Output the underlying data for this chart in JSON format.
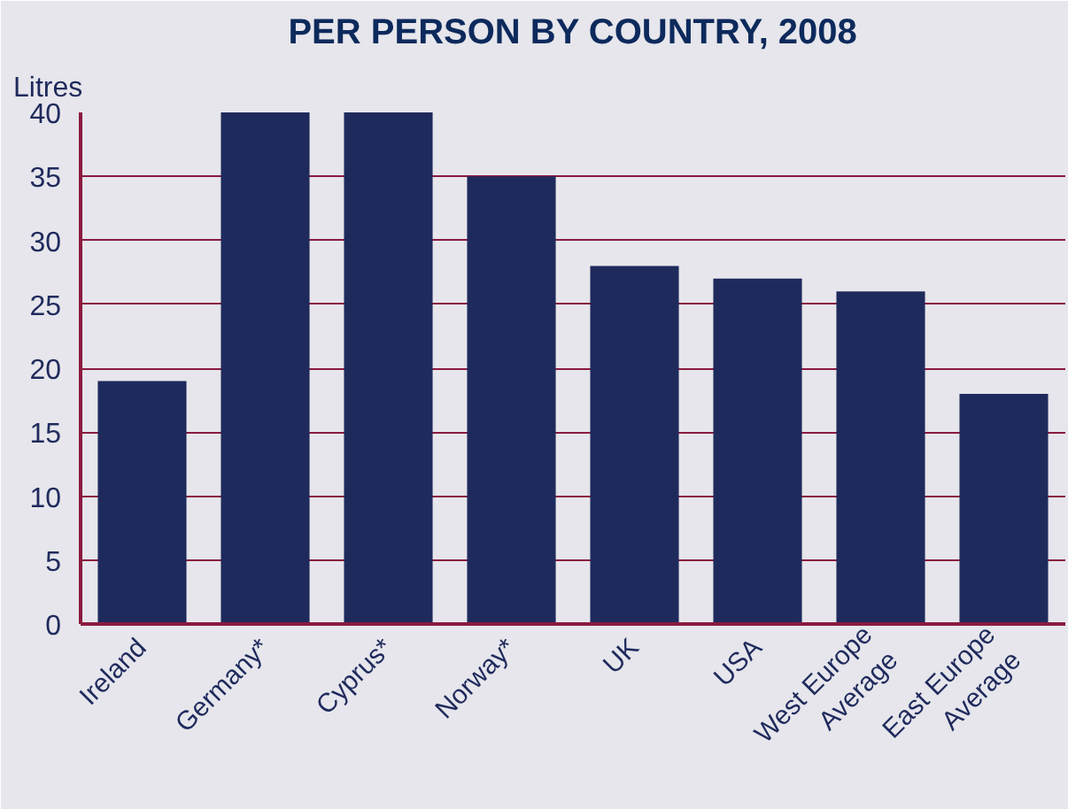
{
  "chart_data": {
    "type": "bar",
    "title": "PER PERSON BY COUNTRY, 2008",
    "ylabel": "Litres",
    "categories": [
      "Ireland",
      "Germany*",
      "Cyprus*",
      "Norway*",
      "UK",
      "USA",
      "West Europe\nAverage",
      "East Europe\nAverage"
    ],
    "values": [
      19,
      40,
      40,
      35,
      28,
      27,
      26,
      18
    ],
    "color": "#1f2a5c",
    "ylim": [
      0,
      40
    ],
    "yticks": [
      0,
      5,
      10,
      15,
      20,
      25,
      30,
      35,
      40
    ],
    "grid": "y"
  }
}
